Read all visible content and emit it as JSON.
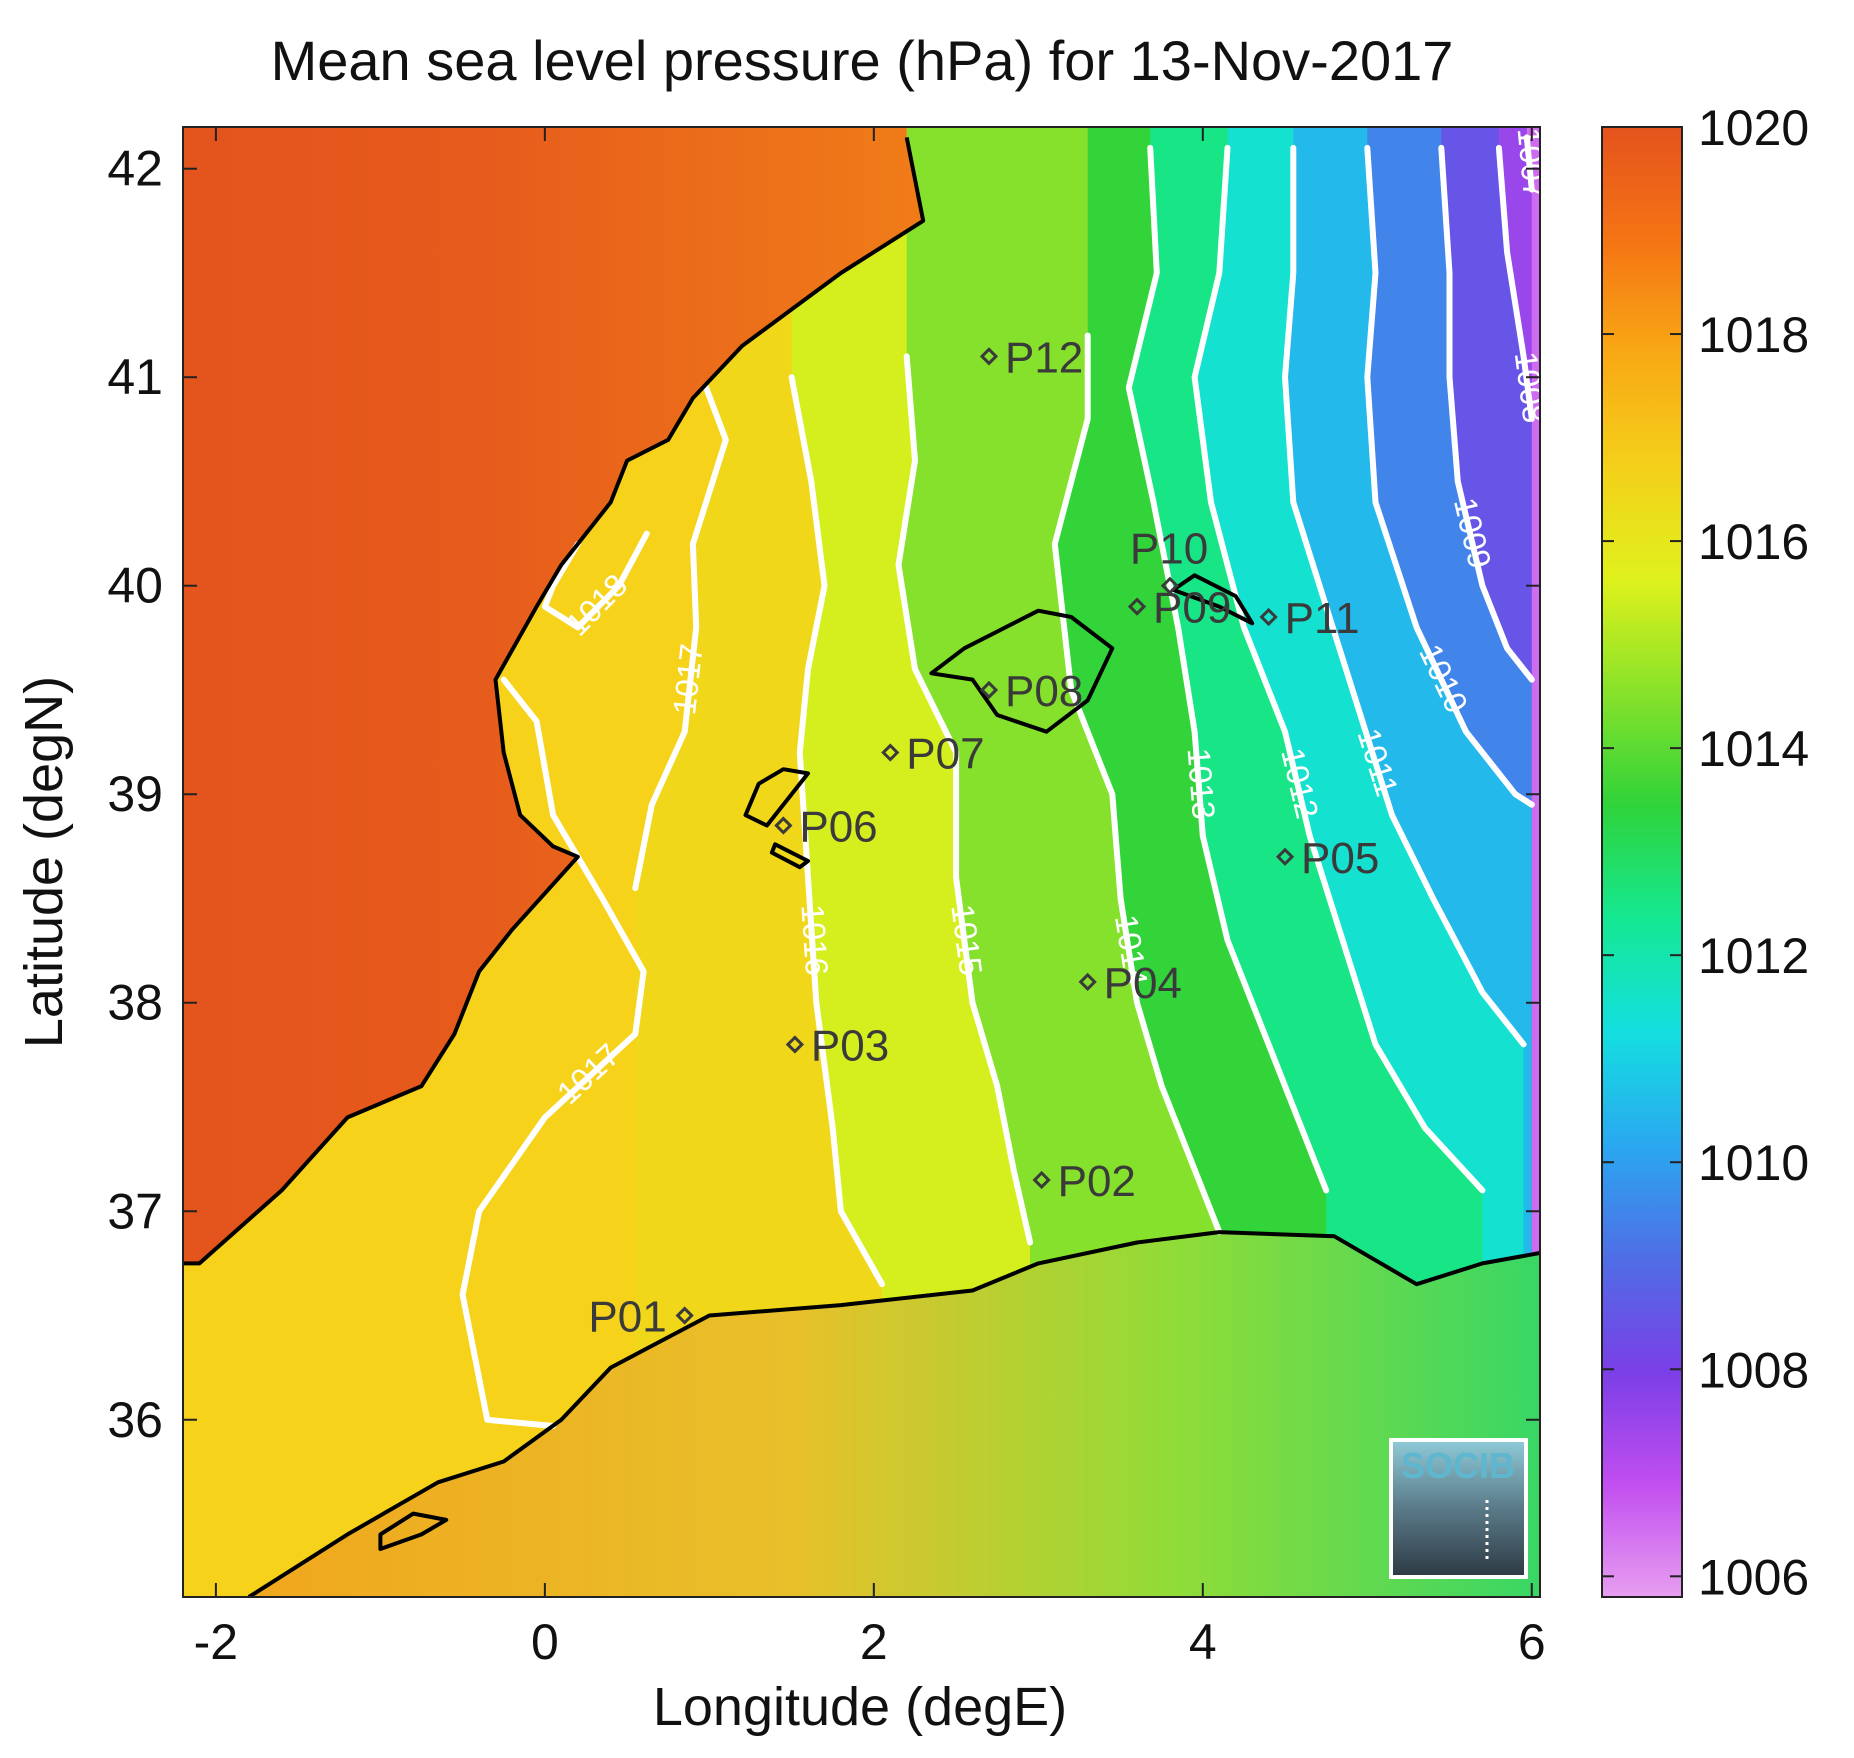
{
  "title": "Mean sea level pressure (hPa) for 13-Nov-2017",
  "xlabel": "Longitude (degE)",
  "ylabel": "Latitude (degN)",
  "x_ticks": [
    {
      "value": -2,
      "label": "-2"
    },
    {
      "value": 0,
      "label": "0"
    },
    {
      "value": 2,
      "label": "2"
    },
    {
      "value": 4,
      "label": "4"
    },
    {
      "value": 6,
      "label": "6"
    }
  ],
  "y_ticks": [
    {
      "value": 36,
      "label": "36"
    },
    {
      "value": 37,
      "label": "37"
    },
    {
      "value": 38,
      "label": "38"
    },
    {
      "value": 39,
      "label": "39"
    },
    {
      "value": 40,
      "label": "40"
    },
    {
      "value": 41,
      "label": "41"
    },
    {
      "value": 42,
      "label": "42"
    }
  ],
  "colorbar": {
    "range": [
      1005.8,
      1020
    ],
    "ticks": [
      {
        "value": 1006,
        "label": "1006"
      },
      {
        "value": 1008,
        "label": "1008"
      },
      {
        "value": 1010,
        "label": "1010"
      },
      {
        "value": 1012,
        "label": "1012"
      },
      {
        "value": 1014,
        "label": "1014"
      },
      {
        "value": 1016,
        "label": "1016"
      },
      {
        "value": 1018,
        "label": "1018"
      },
      {
        "value": 1020,
        "label": "1020"
      }
    ],
    "colors": [
      "#e79ef0",
      "#c14ef0",
      "#7a3fe6",
      "#4f6ee6",
      "#2aa8f0",
      "#14dfe0",
      "#15e892",
      "#2fd33a",
      "#88e22a",
      "#dff11c",
      "#f4d01a",
      "#f8a814",
      "#f57414",
      "#e4531d"
    ]
  },
  "logo": {
    "text": "SOCIB"
  },
  "chart_data": {
    "type": "heatmap",
    "title": "Mean sea level pressure (hPa) for 13-Nov-2017",
    "xlabel": "Longitude (degE)",
    "ylabel": "Latitude (degN)",
    "xlim": [
      -2.2,
      6.05
    ],
    "ylim": [
      35.15,
      42.2
    ],
    "clim": [
      1005.8,
      1020
    ],
    "units": "hPa",
    "contour_levels": [
      1007,
      1008,
      1009,
      1010,
      1011,
      1012,
      1013,
      1014,
      1015,
      1016,
      1017,
      1018
    ],
    "contours": [
      {
        "level": 1017,
        "label": "1017",
        "points": [
          [
            -0.25,
            39.55
          ],
          [
            -0.05,
            39.35
          ],
          [
            0.05,
            38.9
          ],
          [
            0.35,
            38.5
          ],
          [
            0.6,
            38.15
          ],
          [
            0.55,
            37.85
          ],
          [
            0.0,
            37.45
          ],
          [
            -0.4,
            37.0
          ],
          [
            -0.5,
            36.6
          ],
          [
            -0.35,
            36.0
          ],
          [
            0.05,
            35.97
          ]
        ]
      },
      {
        "level": 1017,
        "label": "1017",
        "points": [
          [
            0.98,
            40.95
          ],
          [
            1.1,
            40.7
          ],
          [
            1.0,
            40.45
          ],
          [
            0.9,
            40.2
          ],
          [
            0.92,
            39.8
          ],
          [
            0.85,
            39.3
          ],
          [
            0.65,
            38.95
          ],
          [
            0.55,
            38.55
          ]
        ]
      },
      {
        "level": 1018,
        "label": "1018",
        "points": [
          [
            0.2,
            40.2
          ],
          [
            0.05,
            40.0
          ],
          [
            0.0,
            39.9
          ],
          [
            0.2,
            39.8
          ],
          [
            0.45,
            40.0
          ],
          [
            0.62,
            40.25
          ]
        ]
      },
      {
        "level": 1016,
        "label": "1016",
        "points": [
          [
            1.5,
            41.0
          ],
          [
            1.62,
            40.5
          ],
          [
            1.7,
            40.0
          ],
          [
            1.6,
            39.6
          ],
          [
            1.55,
            39.2
          ],
          [
            1.6,
            38.6
          ],
          [
            1.65,
            38.0
          ],
          [
            1.75,
            37.4
          ],
          [
            1.8,
            37.0
          ],
          [
            2.05,
            36.65
          ]
        ]
      },
      {
        "level": 1015,
        "label": "1015",
        "points": [
          [
            2.2,
            41.1
          ],
          [
            2.25,
            40.6
          ],
          [
            2.15,
            40.1
          ],
          [
            2.25,
            39.6
          ],
          [
            2.5,
            39.2
          ],
          [
            2.5,
            38.6
          ],
          [
            2.6,
            38.0
          ],
          [
            2.75,
            37.6
          ],
          [
            2.85,
            37.2
          ],
          [
            2.95,
            36.85
          ]
        ]
      },
      {
        "level": 1014,
        "label": "1014",
        "points": [
          [
            3.3,
            41.2
          ],
          [
            3.3,
            40.8
          ],
          [
            3.1,
            40.2
          ],
          [
            3.2,
            39.5
          ],
          [
            3.45,
            39.0
          ],
          [
            3.5,
            38.5
          ],
          [
            3.6,
            38.0
          ],
          [
            3.75,
            37.6
          ],
          [
            3.9,
            37.3
          ],
          [
            4.1,
            36.9
          ]
        ]
      },
      {
        "level": 1013,
        "label": "1013",
        "points": [
          [
            3.68,
            42.1
          ],
          [
            3.72,
            41.5
          ],
          [
            3.55,
            40.95
          ],
          [
            3.7,
            40.4
          ],
          [
            3.85,
            39.8
          ],
          [
            3.95,
            39.3
          ],
          [
            4.0,
            38.8
          ],
          [
            4.15,
            38.3
          ],
          [
            4.4,
            37.8
          ],
          [
            4.6,
            37.4
          ],
          [
            4.75,
            37.1
          ]
        ]
      },
      {
        "level": 1012,
        "label": "1012",
        "points": [
          [
            4.15,
            42.1
          ],
          [
            4.1,
            41.5
          ],
          [
            3.95,
            41.0
          ],
          [
            4.05,
            40.4
          ],
          [
            4.25,
            39.8
          ],
          [
            4.5,
            39.3
          ],
          [
            4.65,
            38.8
          ],
          [
            4.85,
            38.3
          ],
          [
            5.05,
            37.8
          ],
          [
            5.35,
            37.4
          ],
          [
            5.7,
            37.1
          ]
        ]
      },
      {
        "level": 1011,
        "label": "1011",
        "points": [
          [
            4.55,
            42.1
          ],
          [
            4.55,
            41.5
          ],
          [
            4.5,
            41.0
          ],
          [
            4.55,
            40.4
          ],
          [
            4.75,
            39.9
          ],
          [
            4.95,
            39.4
          ],
          [
            5.15,
            38.9
          ],
          [
            5.4,
            38.5
          ],
          [
            5.7,
            38.05
          ],
          [
            5.95,
            37.8
          ]
        ]
      },
      {
        "level": 1010,
        "label": "1010",
        "points": [
          [
            5.0,
            42.1
          ],
          [
            5.05,
            41.5
          ],
          [
            5.0,
            41.0
          ],
          [
            5.05,
            40.4
          ],
          [
            5.3,
            39.8
          ],
          [
            5.6,
            39.3
          ],
          [
            5.9,
            39.0
          ],
          [
            6.0,
            38.95
          ]
        ]
      },
      {
        "level": 1009,
        "label": "1009",
        "points": [
          [
            5.45,
            42.1
          ],
          [
            5.5,
            41.5
          ],
          [
            5.5,
            41.0
          ],
          [
            5.55,
            40.5
          ],
          [
            5.7,
            40.0
          ],
          [
            5.85,
            39.7
          ],
          [
            6.0,
            39.55
          ]
        ]
      },
      {
        "level": 1008,
        "label": "1008",
        "points": [
          [
            5.8,
            42.1
          ],
          [
            5.85,
            41.6
          ],
          [
            5.95,
            41.1
          ],
          [
            6.0,
            40.8
          ]
        ]
      },
      {
        "level": 1007,
        "label": "1007",
        "points": [
          [
            5.97,
            42.15
          ],
          [
            6.0,
            41.9
          ]
        ]
      }
    ],
    "stations": [
      {
        "name": "P01",
        "lon": 0.85,
        "lat": 36.5
      },
      {
        "name": "P02",
        "lon": 3.02,
        "lat": 37.15
      },
      {
        "name": "P03",
        "lon": 1.52,
        "lat": 37.8
      },
      {
        "name": "P04",
        "lon": 3.3,
        "lat": 38.1
      },
      {
        "name": "P05",
        "lon": 4.5,
        "lat": 38.7
      },
      {
        "name": "P06",
        "lon": 1.45,
        "lat": 38.85
      },
      {
        "name": "P07",
        "lon": 2.1,
        "lat": 39.2
      },
      {
        "name": "P08",
        "lon": 2.7,
        "lat": 39.5
      },
      {
        "name": "P09",
        "lon": 3.6,
        "lat": 39.9
      },
      {
        "name": "P10",
        "lon": 3.8,
        "lat": 40.0
      },
      {
        "name": "P11",
        "lon": 4.4,
        "lat": 39.85
      },
      {
        "name": "P12",
        "lon": 2.7,
        "lat": 41.1
      }
    ],
    "coastlines": [
      {
        "name": "iberian-coast",
        "points": [
          [
            2.2,
            42.15
          ],
          [
            2.3,
            41.75
          ],
          [
            1.8,
            41.5
          ],
          [
            1.2,
            41.15
          ],
          [
            0.9,
            40.9
          ],
          [
            0.75,
            40.7
          ],
          [
            0.5,
            40.6
          ],
          [
            0.4,
            40.4
          ],
          [
            0.1,
            40.1
          ],
          [
            -0.05,
            39.9
          ],
          [
            -0.3,
            39.55
          ],
          [
            -0.25,
            39.2
          ],
          [
            -0.15,
            38.9
          ],
          [
            0.05,
            38.75
          ],
          [
            0.2,
            38.7
          ],
          [
            -0.2,
            38.35
          ],
          [
            -0.4,
            38.15
          ],
          [
            -0.55,
            37.85
          ],
          [
            -0.75,
            37.6
          ],
          [
            -1.2,
            37.45
          ],
          [
            -1.6,
            37.1
          ],
          [
            -2.1,
            36.75
          ],
          [
            -2.2,
            36.75
          ]
        ]
      },
      {
        "name": "african-coast",
        "points": [
          [
            -1.8,
            35.15
          ],
          [
            -1.2,
            35.45
          ],
          [
            -0.65,
            35.7
          ],
          [
            -0.25,
            35.8
          ],
          [
            0.1,
            36.0
          ],
          [
            0.4,
            36.25
          ],
          [
            1.0,
            36.5
          ],
          [
            1.8,
            36.55
          ],
          [
            2.6,
            36.62
          ],
          [
            3.0,
            36.75
          ],
          [
            3.6,
            36.85
          ],
          [
            4.1,
            36.9
          ],
          [
            4.8,
            36.88
          ],
          [
            5.3,
            36.65
          ],
          [
            5.7,
            36.75
          ],
          [
            6.05,
            36.8
          ]
        ]
      },
      {
        "name": "mallorca",
        "points": [
          [
            2.35,
            39.58
          ],
          [
            2.6,
            39.55
          ],
          [
            2.75,
            39.38
          ],
          [
            3.05,
            39.3
          ],
          [
            3.3,
            39.45
          ],
          [
            3.45,
            39.7
          ],
          [
            3.2,
            39.85
          ],
          [
            3.0,
            39.88
          ],
          [
            2.55,
            39.7
          ],
          [
            2.35,
            39.58
          ]
        ]
      },
      {
        "name": "menorca",
        "points": [
          [
            3.82,
            39.98
          ],
          [
            4.1,
            39.9
          ],
          [
            4.3,
            39.82
          ],
          [
            4.2,
            39.95
          ],
          [
            3.95,
            40.05
          ],
          [
            3.82,
            39.98
          ]
        ]
      },
      {
        "name": "ibiza",
        "points": [
          [
            1.22,
            38.9
          ],
          [
            1.35,
            38.85
          ],
          [
            1.5,
            39.0
          ],
          [
            1.6,
            39.1
          ],
          [
            1.45,
            39.12
          ],
          [
            1.3,
            39.05
          ],
          [
            1.22,
            38.9
          ]
        ]
      },
      {
        "name": "formentera",
        "points": [
          [
            1.38,
            38.72
          ],
          [
            1.55,
            38.65
          ],
          [
            1.6,
            38.68
          ],
          [
            1.4,
            38.76
          ],
          [
            1.38,
            38.72
          ]
        ]
      },
      {
        "name": "alboran",
        "points": [
          [
            -1.0,
            35.38
          ],
          [
            -0.75,
            35.45
          ],
          [
            -0.6,
            35.52
          ],
          [
            -0.8,
            35.55
          ],
          [
            -1.0,
            35.45
          ],
          [
            -1.0,
            35.38
          ]
        ]
      }
    ]
  }
}
